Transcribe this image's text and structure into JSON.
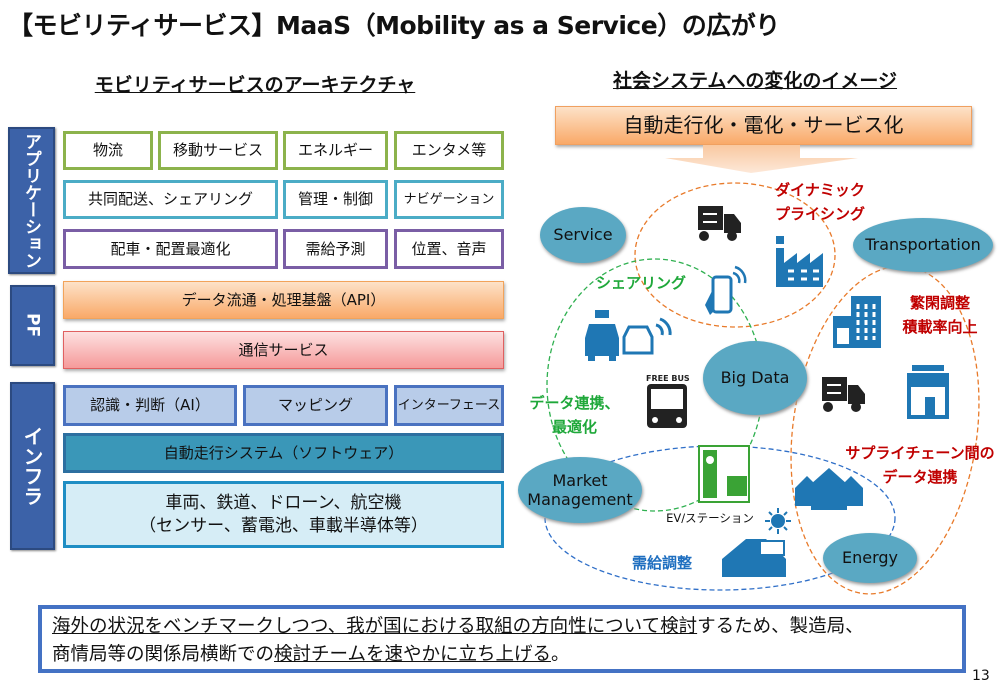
{
  "title": "【モビリティサービス】MaaS（Mobility as a Service）の広がり",
  "left": {
    "subtitle": "モビリティサービスのアーキテクチャ",
    "layers": {
      "app": "アプリケーション",
      "pf": "PF",
      "infra": "インフラ"
    },
    "app_row1": [
      "物流",
      "移動サービス",
      "エネルギー",
      "エンタメ等"
    ],
    "app_row2": [
      "共同配送、シェアリング",
      "管理・制御",
      "ナビゲーション"
    ],
    "app_row3": [
      "配車・配置最適化",
      "需給予測",
      "位置、音声"
    ],
    "pf_api": "データ流通・処理基盤（API）",
    "pf_comm": "通信サービス",
    "infra_row1": [
      "認識・判断（AI）",
      "マッピング",
      "インターフェース"
    ],
    "infra_auto": "自動走行システム（ソフトウェア）",
    "infra_vehicle_line1": "車両、鉄道、ドローン、航空機",
    "infra_vehicle_line2": "（センサー、蓄電池、車載半導体等）"
  },
  "right": {
    "subtitle": "社会システムへの変化のイメージ",
    "header": "自動走行化・電化・サービス化",
    "nodes": {
      "service": "Service",
      "transportation": "Transportation",
      "bigdata": "Big Data",
      "market_line1": "Market",
      "market_line2": "Management",
      "energy": "Energy"
    },
    "labels": {
      "dynamic1": "ダイナミック",
      "dynamic2": "プライシング",
      "sharing": "シェアリング",
      "hankan1": "繁閑調整",
      "hankan2": "積載率向上",
      "data1": "データ連携、",
      "data2": "最適化",
      "supply1": "サプライチェーン間の",
      "supply2": "データ連携",
      "demand": "需給調整",
      "ev": "EV/ステーション",
      "bus_sign": "FREE BUS"
    },
    "colors": {
      "red": "#c00000",
      "green": "#1fa83a",
      "blue": "#1f6fc0",
      "orange_dash": "#e87a2a",
      "green_dash": "#2fb050",
      "blue_dash": "#2f6fc8",
      "node": "#5aa8c3",
      "icon": "#1f77b4"
    }
  },
  "bottom": {
    "l1_u": "海外の状況をベンチマークしつつ、我が国における取組の方向性について検討",
    "l1_rest": "するため、製造局、",
    "l2_pre": "商情局等の関係局横断での",
    "l2_u": "検討チームを速やかに立ち上げる",
    "l2_end": "。"
  },
  "page_number": "13"
}
